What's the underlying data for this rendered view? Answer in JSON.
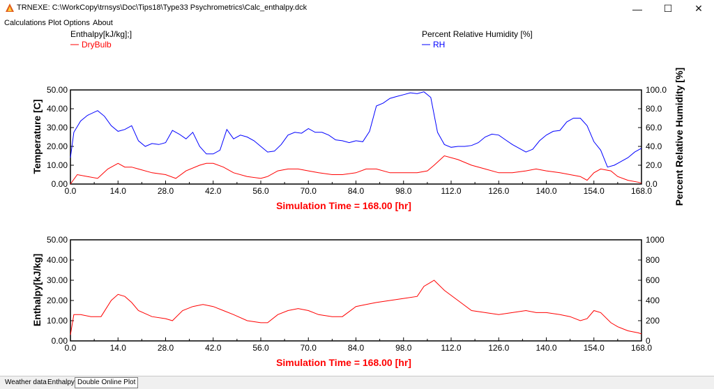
{
  "window": {
    "title": "TRNEXE: C:\\WorkCopy\\trnsys\\Doc\\Tips18\\Type33 Psychrometrics\\Calc_enthalpy.dck",
    "minimize_glyph": "—",
    "maximize_glyph": "☐",
    "close_glyph": "✕"
  },
  "menu": {
    "items": [
      "Calculations",
      "Plot Options",
      "About"
    ]
  },
  "legend": {
    "left_title": "Enthalpy[kJ/kg];]",
    "left_series": "DryBulb",
    "right_title": "Percent Relative Humidity [%]",
    "right_series": "RH"
  },
  "colors": {
    "red_series": "#ff0000",
    "blue_series": "#0000ff",
    "axis_label_red": "#ff0000"
  },
  "tabs": [
    "Weather data",
    "Enthalpy",
    "Double Online Plot"
  ],
  "chart_data": [
    {
      "type": "line",
      "xlabel": "Simulation Time = 168.00 [hr]",
      "ylabel": "Temperature [C]",
      "y2label": "Percent Relative Humidity [%]",
      "xlim": [
        0,
        168
      ],
      "ylim": [
        0,
        50
      ],
      "y2lim": [
        0,
        100
      ],
      "x_ticks": [
        "0.0",
        "14.0",
        "28.0",
        "42.0",
        "56.0",
        "70.0",
        "84.0",
        "98.0",
        "112.0",
        "126.0",
        "140.0",
        "154.0",
        "168.0"
      ],
      "y_ticks": [
        "0.00",
        "10.00",
        "20.00",
        "30.00",
        "40.00",
        "50.00"
      ],
      "y2_ticks": [
        "0.0",
        "20.0",
        "40.0",
        "60.0",
        "80.0",
        "100.0"
      ],
      "grid": false,
      "series": [
        {
          "name": "DryBulb",
          "axis": "left",
          "color": "#ff0000",
          "x": [
            0,
            2,
            5,
            8,
            11,
            14,
            16,
            18,
            20,
            24,
            28,
            31,
            34,
            38,
            40,
            42,
            45,
            48,
            52,
            56,
            58,
            61,
            64,
            67,
            70,
            73,
            77,
            80,
            84,
            87,
            90,
            94,
            98,
            102,
            105,
            107,
            110,
            114,
            118,
            122,
            126,
            130,
            134,
            137,
            140,
            144,
            147,
            150,
            152,
            154,
            156,
            159,
            161,
            164,
            167,
            168
          ],
          "y": [
            0,
            5,
            4,
            3,
            8,
            11,
            9,
            9,
            8,
            6,
            5,
            3,
            7,
            10,
            11,
            11,
            9,
            6,
            4,
            3,
            4,
            7,
            8,
            8,
            7,
            6,
            5,
            5,
            6,
            8,
            8,
            6,
            6,
            6,
            7,
            10,
            15,
            13,
            10,
            8,
            6,
            6,
            7,
            8,
            7,
            6,
            5,
            4,
            2,
            6,
            8,
            7,
            4,
            2,
            1,
            0.5
          ]
        },
        {
          "name": "RH",
          "axis": "right",
          "color": "#0000ff",
          "x": [
            0,
            1,
            3,
            5,
            8,
            10,
            12,
            14,
            16,
            18,
            20,
            22,
            24,
            26,
            28,
            30,
            32,
            34,
            36,
            38,
            40,
            42,
            44,
            46,
            48,
            50,
            52,
            54,
            56,
            58,
            60,
            62,
            64,
            66,
            68,
            70,
            72,
            74,
            76,
            78,
            80,
            82,
            84,
            86,
            88,
            90,
            92,
            94,
            96,
            98,
            100,
            102,
            104,
            106,
            108,
            110,
            112,
            114,
            116,
            118,
            120,
            122,
            124,
            126,
            128,
            130,
            132,
            134,
            136,
            138,
            140,
            142,
            144,
            146,
            148,
            150,
            152,
            154,
            156,
            158,
            160,
            162,
            164,
            166,
            168
          ],
          "y": [
            28,
            55,
            67,
            73,
            78,
            72,
            62,
            56,
            58,
            62,
            46,
            40,
            43,
            42,
            44,
            57,
            53,
            48,
            55,
            40,
            32,
            32,
            36,
            58,
            48,
            52,
            50,
            46,
            40,
            34,
            35,
            42,
            52,
            55,
            54,
            59,
            55,
            55,
            52,
            47,
            46,
            44,
            46,
            45,
            56,
            83,
            86,
            91,
            93,
            95,
            97,
            96,
            98,
            92,
            55,
            42,
            39,
            40,
            40,
            41,
            44,
            50,
            53,
            52,
            47,
            42,
            38,
            34,
            37,
            46,
            52,
            56,
            57,
            66,
            70,
            70,
            62,
            45,
            36,
            18,
            20,
            24,
            28,
            34,
            38
          ]
        }
      ]
    },
    {
      "type": "line",
      "xlabel": "Simulation Time = 168.00 [hr]",
      "ylabel": "Enthalpy[kJ/kg]",
      "xlim": [
        0,
        168
      ],
      "ylim": [
        0,
        50
      ],
      "y2lim": [
        0,
        1000
      ],
      "x_ticks": [
        "0.0",
        "14.0",
        "28.0",
        "42.0",
        "56.0",
        "70.0",
        "84.0",
        "98.0",
        "112.0",
        "126.0",
        "140.0",
        "154.0",
        "168.0"
      ],
      "y_ticks": [
        "0.00",
        "10.00",
        "20.00",
        "30.00",
        "40.00",
        "50.00"
      ],
      "y2_ticks": [
        "0",
        "200",
        "400",
        "600",
        "800",
        "1000"
      ],
      "grid": false,
      "series": [
        {
          "name": "Enthalpy",
          "axis": "left",
          "color": "#ff0000",
          "x": [
            0,
            1,
            3,
            6,
            9,
            12,
            14,
            16,
            18,
            20,
            24,
            28,
            30,
            33,
            36,
            39,
            42,
            45,
            48,
            52,
            56,
            58,
            61,
            64,
            67,
            70,
            73,
            77,
            80,
            84,
            87,
            90,
            94,
            98,
            102,
            104,
            106,
            107,
            110,
            114,
            118,
            122,
            126,
            130,
            134,
            137,
            140,
            144,
            147,
            150,
            152,
            154,
            156,
            159,
            161,
            164,
            167,
            168
          ],
          "y": [
            3,
            13,
            13,
            12,
            12,
            20,
            23,
            22,
            19,
            15,
            12,
            11,
            10,
            15,
            17,
            18,
            17,
            15,
            13,
            10,
            9,
            9,
            13,
            15,
            16,
            15,
            13,
            12,
            12,
            17,
            18,
            19,
            20,
            21,
            22,
            27,
            29,
            30,
            25,
            20,
            15,
            14,
            13,
            14,
            15,
            14,
            14,
            13,
            12,
            10,
            11,
            15,
            14,
            9,
            7,
            5,
            4,
            3.5
          ]
        }
      ]
    }
  ]
}
